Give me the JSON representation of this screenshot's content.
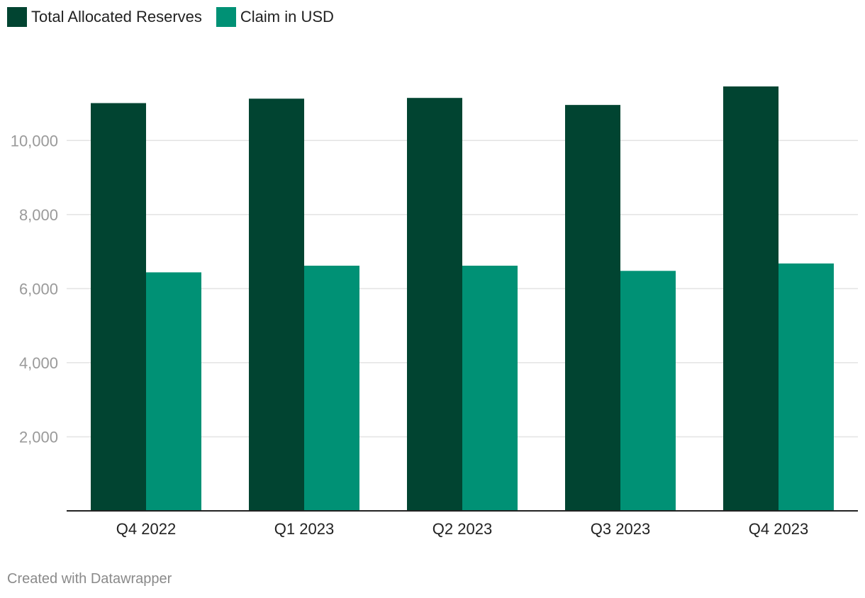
{
  "legend": {
    "items": [
      {
        "label": "Total Allocated Reserves",
        "color": "#014431"
      },
      {
        "label": "Claim in USD",
        "color": "#009175"
      }
    ]
  },
  "footer": {
    "text": "Created with Datawrapper"
  },
  "chart_data": {
    "type": "bar",
    "title": "",
    "xlabel": "",
    "ylabel": "",
    "categories": [
      "Q4 2022",
      "Q1 2023",
      "Q2 2023",
      "Q3 2023",
      "Q4 2023"
    ],
    "series": [
      {
        "name": "Total Allocated Reserves",
        "values": [
          11010,
          11130,
          11150,
          10960,
          11460
        ],
        "color": "#014431"
      },
      {
        "name": "Claim in USD",
        "values": [
          6440,
          6620,
          6620,
          6480,
          6680
        ],
        "color": "#009175"
      }
    ],
    "ylim": [
      0,
      11460
    ],
    "yticks": [
      2000,
      4000,
      6000,
      8000,
      10000
    ],
    "ytick_labels": [
      "2,000",
      "4,000",
      "6,000",
      "8,000",
      "10,000"
    ],
    "grid": true,
    "legend_position": "top-left"
  }
}
